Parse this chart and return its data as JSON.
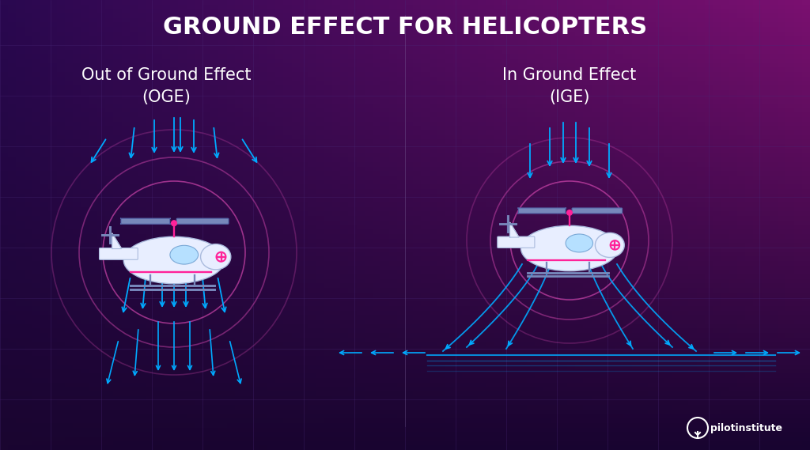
{
  "title": "GROUND EFFECT FOR HELICOPTERS",
  "title_color": "#ffffff",
  "title_fontsize": 22,
  "title_fontweight": "bold",
  "oge_label": "Out of Ground Effect\n(OGE)",
  "ige_label": "In Ground Effect\n(IGE)",
  "label_color": "#ffffff",
  "label_fontsize": 15,
  "bg_top_color": "#8b1a8c",
  "bg_bottom_color": "#2a0a4a",
  "bg_left_color": "#1a0a3a",
  "grid_color": "#4a2a7a",
  "arrow_color": "#00aaff",
  "vortex_color": "#cc44aa",
  "rotor_color": "#7788cc",
  "body_color": "#eeeeff",
  "accent_color": "#ff2299",
  "logo_text": "pilotinstitute",
  "logo_color": "#ffffff",
  "figsize": [
    10.24,
    5.69
  ],
  "dpi": 100
}
